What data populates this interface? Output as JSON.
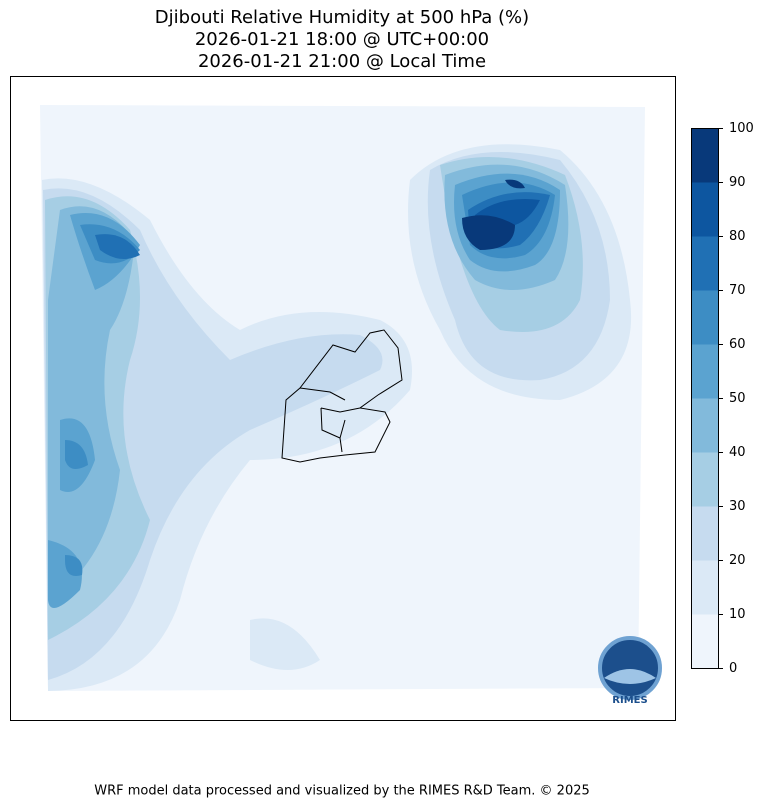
{
  "title": [
    "Djibouti Relative Humidity at 500 hPa (%)",
    "2026-01-21 18:00 @ UTC+00:00",
    "2026-01-21 21:00 @ Local Time"
  ],
  "colorbar": {
    "ticks": [
      0,
      10,
      20,
      30,
      40,
      50,
      60,
      70,
      80,
      90,
      100
    ],
    "colors": [
      "#eff5fc",
      "#dbe9f6",
      "#c6dbef",
      "#a6cee4",
      "#82badb",
      "#5ba3d0",
      "#3d8dc4",
      "#2070b4",
      "#0d56a0",
      "#08397a"
    ]
  },
  "logo": "RIMES",
  "footer": "WRF model data processed and visualized by the RIMES R&D Team. © 2025"
}
